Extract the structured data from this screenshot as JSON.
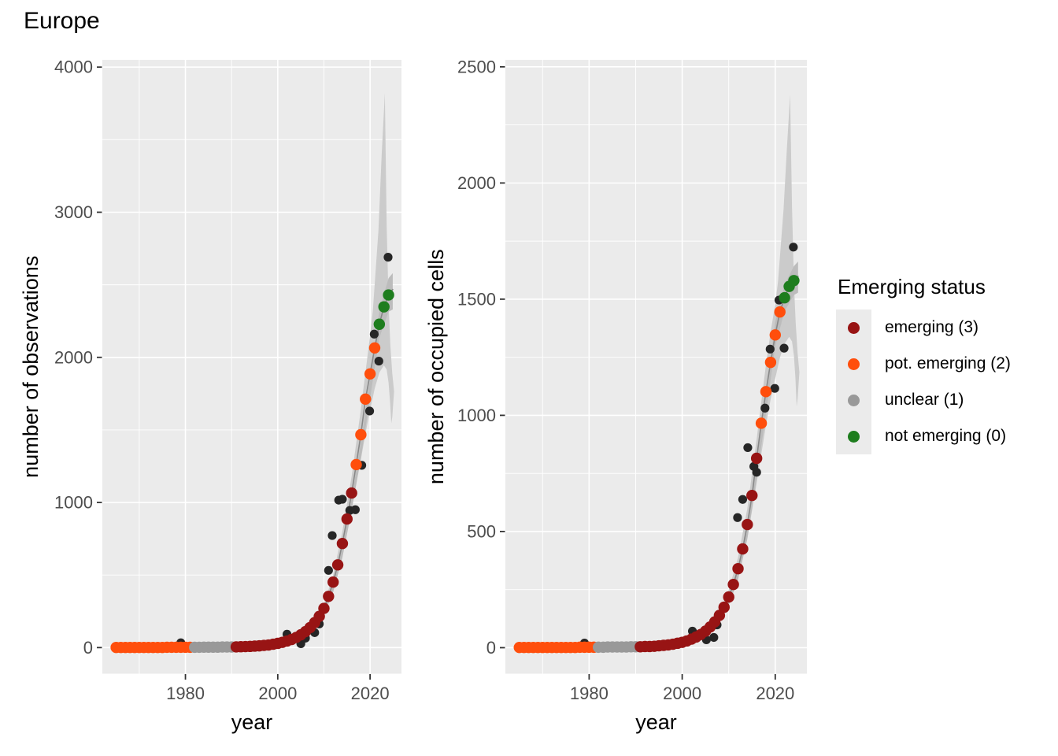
{
  "title": "Europe",
  "colors": {
    "panel_bg": "#EBEBEB",
    "grid": "#FFFFFF",
    "ribbon_outer": "#CBCBCB",
    "ribbon_inner": "#BCBCBC",
    "fit_line": "#888888",
    "observed_point": "#262626",
    "tick_mark": "#333333",
    "tick_label": "#4D4D4D",
    "axis_title": "#000000"
  },
  "status_colors": {
    "3": "#981414",
    "2": "#FF4E0C",
    "1": "#999999",
    "0": "#1E7D1E"
  },
  "legend": {
    "title": "Emerging status",
    "items": [
      {
        "code": 3,
        "label": "emerging (3)",
        "color": "#981414"
      },
      {
        "code": 2,
        "label": "pot. emerging (2)",
        "color": "#FF4E0C"
      },
      {
        "code": 1,
        "label": "unclear (1)",
        "color": "#999999"
      },
      {
        "code": 0,
        "label": "not emerging (0)",
        "color": "#1E7D1E"
      }
    ]
  },
  "x_axis": {
    "title": "year",
    "range": [
      1962,
      2026.8
    ],
    "ticks": [
      1980,
      2000,
      2020
    ],
    "minor": [
      1970,
      1990,
      2010
    ]
  },
  "chart_data": [
    {
      "type": "scatter",
      "panel": "observations",
      "y_title": "number of observations",
      "y_range": [
        -180,
        4050
      ],
      "y_ticks": [
        0,
        1000,
        2000,
        3000,
        4000
      ],
      "y_minor": [
        500,
        1500,
        2500,
        3500
      ],
      "fitted": [
        [
          1965,
          1,
          2
        ],
        [
          1966,
          1,
          2
        ],
        [
          1967,
          1,
          2
        ],
        [
          1968,
          1,
          2
        ],
        [
          1969,
          1,
          2
        ],
        [
          1970,
          1,
          2
        ],
        [
          1971,
          1,
          2
        ],
        [
          1972,
          1,
          2
        ],
        [
          1973,
          1,
          2
        ],
        [
          1974,
          1,
          2
        ],
        [
          1975,
          1,
          2
        ],
        [
          1976,
          2,
          2
        ],
        [
          1977,
          2,
          2
        ],
        [
          1978,
          2,
          2
        ],
        [
          1979,
          2,
          2
        ],
        [
          1980,
          2,
          2
        ],
        [
          1981,
          2,
          2
        ],
        [
          1982,
          2,
          1
        ],
        [
          1983,
          2,
          1
        ],
        [
          1984,
          3,
          1
        ],
        [
          1985,
          3,
          1
        ],
        [
          1986,
          3,
          1
        ],
        [
          1987,
          3,
          1
        ],
        [
          1988,
          4,
          1
        ],
        [
          1989,
          4,
          1
        ],
        [
          1990,
          4,
          1
        ],
        [
          1991,
          5,
          3
        ],
        [
          1992,
          6,
          3
        ],
        [
          1993,
          7,
          3
        ],
        [
          1994,
          8,
          3
        ],
        [
          1995,
          10,
          3
        ],
        [
          1996,
          12,
          3
        ],
        [
          1997,
          15,
          3
        ],
        [
          1998,
          18,
          3
        ],
        [
          1999,
          23,
          3
        ],
        [
          2000,
          29,
          3
        ],
        [
          2001,
          36,
          3
        ],
        [
          2002,
          45,
          3
        ],
        [
          2003,
          56,
          3
        ],
        [
          2004,
          70,
          3
        ],
        [
          2005,
          88,
          3
        ],
        [
          2006,
          110,
          3
        ],
        [
          2007,
          138,
          3
        ],
        [
          2008,
          172,
          3
        ],
        [
          2009,
          215,
          3
        ],
        [
          2010,
          270,
          3
        ],
        [
          2011,
          353,
          3
        ],
        [
          2012,
          451,
          3
        ],
        [
          2013,
          570,
          3
        ],
        [
          2014,
          717,
          3
        ],
        [
          2015,
          886,
          3
        ],
        [
          2016,
          1065,
          3
        ],
        [
          2017,
          1261,
          2
        ],
        [
          2018,
          1467,
          2
        ],
        [
          2019,
          1712,
          2
        ],
        [
          2020,
          1886,
          2
        ],
        [
          2021,
          2065,
          2
        ],
        [
          2022,
          2228,
          0
        ],
        [
          2023,
          2348,
          0
        ],
        [
          2024,
          2430,
          0
        ]
      ],
      "observed": [
        [
          1979,
          33
        ],
        [
          2002,
          92
        ],
        [
          2005,
          27
        ],
        [
          2006,
          65
        ],
        [
          2008,
          103
        ],
        [
          2009,
          163
        ],
        [
          2011,
          532
        ],
        [
          2011.8,
          772
        ],
        [
          2013.2,
          1016
        ],
        [
          2014,
          1022
        ],
        [
          2015.6,
          945
        ],
        [
          2016.8,
          950
        ],
        [
          2018.2,
          1256
        ],
        [
          2019.9,
          1630
        ],
        [
          2020.9,
          2160
        ],
        [
          2021.9,
          1974
        ],
        [
          2023.9,
          2690
        ]
      ],
      "ribbon_outer": {
        "upper": [
          [
            2004,
            85
          ],
          [
            2006,
            120
          ],
          [
            2008,
            195
          ],
          [
            2010,
            300
          ],
          [
            2012,
            500
          ],
          [
            2014,
            800
          ],
          [
            2016,
            1180
          ],
          [
            2018,
            1640
          ],
          [
            2019,
            1900
          ],
          [
            2020,
            2150
          ],
          [
            2020.6,
            2320
          ],
          [
            2021.8,
            2870
          ],
          [
            2022.5,
            3390
          ],
          [
            2023.2,
            3820
          ],
          [
            2023.6,
            2900
          ],
          [
            2024.05,
            2330
          ],
          [
            2024.4,
            2080
          ],
          [
            2024.8,
            1890
          ],
          [
            2025.2,
            1765
          ]
        ],
        "lower": [
          [
            2004,
            58
          ],
          [
            2006,
            90
          ],
          [
            2008,
            148
          ],
          [
            2010,
            238
          ],
          [
            2012,
            408
          ],
          [
            2014,
            648
          ],
          [
            2016,
            958
          ],
          [
            2018,
            1295
          ],
          [
            2019,
            1475
          ],
          [
            2020,
            1635
          ],
          [
            2021,
            1785
          ],
          [
            2022,
            1895
          ],
          [
            2023,
            1945
          ],
          [
            2023.6,
            1915
          ],
          [
            2024,
            1825
          ],
          [
            2024.35,
            1685
          ],
          [
            2024.6,
            1545
          ],
          [
            2024.8,
            1588
          ],
          [
            2025.2,
            1765
          ]
        ]
      },
      "ribbon_inner": {
        "upper": [
          [
            2005,
            92
          ],
          [
            2008,
            168
          ],
          [
            2010,
            262
          ],
          [
            2012,
            432
          ],
          [
            2014,
            685
          ],
          [
            2016,
            1030
          ],
          [
            2018,
            1415
          ],
          [
            2020,
            1855
          ],
          [
            2022,
            2320
          ],
          [
            2024,
            2545
          ],
          [
            2024.9,
            2580
          ]
        ],
        "lower": [
          [
            2005,
            74
          ],
          [
            2008,
            138
          ],
          [
            2010,
            228
          ],
          [
            2012,
            382
          ],
          [
            2014,
            618
          ],
          [
            2016,
            945
          ],
          [
            2018,
            1305
          ],
          [
            2020,
            1715
          ],
          [
            2022,
            2135
          ],
          [
            2024,
            2315
          ],
          [
            2024.9,
            2330
          ]
        ]
      },
      "line_extra": [
        [
          2024.6,
          2458
        ],
        [
          2025,
          2470
        ]
      ]
    },
    {
      "type": "scatter",
      "panel": "occupied-cells",
      "y_title": "number of occupied cells",
      "y_range": [
        -112,
        2530
      ],
      "y_ticks": [
        0,
        500,
        1000,
        1500,
        2000,
        2500
      ],
      "y_minor": [
        250,
        750,
        1250,
        1750,
        2250
      ],
      "fitted": [
        [
          1965,
          1,
          2
        ],
        [
          1966,
          1,
          2
        ],
        [
          1967,
          1,
          2
        ],
        [
          1968,
          1,
          2
        ],
        [
          1969,
          1,
          2
        ],
        [
          1970,
          1,
          2
        ],
        [
          1971,
          1,
          2
        ],
        [
          1972,
          1,
          2
        ],
        [
          1973,
          1,
          2
        ],
        [
          1974,
          1,
          2
        ],
        [
          1975,
          1,
          2
        ],
        [
          1976,
          1,
          2
        ],
        [
          1977,
          1,
          2
        ],
        [
          1978,
          2,
          2
        ],
        [
          1979,
          2,
          2
        ],
        [
          1980,
          2,
          2
        ],
        [
          1981,
          2,
          2
        ],
        [
          1982,
          2,
          1
        ],
        [
          1983,
          2,
          1
        ],
        [
          1984,
          3,
          1
        ],
        [
          1985,
          3,
          1
        ],
        [
          1986,
          3,
          1
        ],
        [
          1987,
          3,
          1
        ],
        [
          1988,
          3,
          1
        ],
        [
          1989,
          4,
          1
        ],
        [
          1990,
          4,
          1
        ],
        [
          1991,
          4,
          3
        ],
        [
          1992,
          5,
          3
        ],
        [
          1993,
          5,
          3
        ],
        [
          1994,
          6,
          3
        ],
        [
          1995,
          8,
          3
        ],
        [
          1996,
          10,
          3
        ],
        [
          1997,
          12,
          3
        ],
        [
          1998,
          15,
          3
        ],
        [
          1999,
          19,
          3
        ],
        [
          2000,
          23,
          3
        ],
        [
          2001,
          29,
          3
        ],
        [
          2002,
          37,
          3
        ],
        [
          2003,
          46,
          3
        ],
        [
          2004,
          57,
          3
        ],
        [
          2005,
          71,
          3
        ],
        [
          2006,
          89,
          3
        ],
        [
          2007,
          111,
          3
        ],
        [
          2008,
          139,
          3
        ],
        [
          2009,
          174,
          3
        ],
        [
          2010,
          218,
          3
        ],
        [
          2011,
          272,
          3
        ],
        [
          2012,
          340,
          3
        ],
        [
          2013,
          425,
          3
        ],
        [
          2014,
          530,
          3
        ],
        [
          2015,
          655,
          3
        ],
        [
          2016,
          815,
          3
        ],
        [
          2017,
          966,
          2
        ],
        [
          2018,
          1102,
          2
        ],
        [
          2019,
          1228,
          2
        ],
        [
          2020,
          1346,
          2
        ],
        [
          2021,
          1445,
          2
        ],
        [
          2022,
          1506,
          0
        ],
        [
          2023,
          1555,
          0
        ],
        [
          2024,
          1580,
          0
        ]
      ],
      "observed": [
        [
          1979,
          20
        ],
        [
          2002.2,
          71
        ],
        [
          2005.2,
          34
        ],
        [
          2006.8,
          44
        ],
        [
          2007.5,
          98
        ],
        [
          2011.9,
          560
        ],
        [
          2013,
          638
        ],
        [
          2014.1,
          861
        ],
        [
          2015.4,
          780
        ],
        [
          2016,
          755
        ],
        [
          2017.8,
          1031
        ],
        [
          2018.9,
          1285
        ],
        [
          2019.9,
          1116
        ],
        [
          2020.8,
          1496
        ],
        [
          2021.9,
          1289
        ],
        [
          2023.9,
          1724
        ]
      ],
      "ribbon_outer": {
        "upper": [
          [
            2004,
            68
          ],
          [
            2006,
            98
          ],
          [
            2008,
            158
          ],
          [
            2010,
            248
          ],
          [
            2012,
            388
          ],
          [
            2014,
            598
          ],
          [
            2016,
            898
          ],
          [
            2018,
            1218
          ],
          [
            2019,
            1358
          ],
          [
            2020,
            1478
          ],
          [
            2020.6,
            1578
          ],
          [
            2021.8,
            1888
          ],
          [
            2022.5,
            2148
          ],
          [
            2023.2,
            2380
          ],
          [
            2023.6,
            1898
          ],
          [
            2024.05,
            1558
          ],
          [
            2024.4,
            1398
          ],
          [
            2024.8,
            1268
          ],
          [
            2025.2,
            1185
          ]
        ],
        "lower": [
          [
            2004,
            46
          ],
          [
            2006,
            76
          ],
          [
            2008,
            118
          ],
          [
            2010,
            188
          ],
          [
            2012,
            298
          ],
          [
            2014,
            468
          ],
          [
            2016,
            708
          ],
          [
            2018,
            958
          ],
          [
            2019,
            1068
          ],
          [
            2020,
            1158
          ],
          [
            2021,
            1248
          ],
          [
            2022,
            1308
          ],
          [
            2023,
            1338
          ],
          [
            2023.6,
            1318
          ],
          [
            2024,
            1258
          ],
          [
            2024.35,
            1158
          ],
          [
            2024.6,
            1038
          ],
          [
            2024.8,
            1072
          ],
          [
            2025.2,
            1185
          ]
        ]
      },
      "ribbon_inner": {
        "upper": [
          [
            2005,
            76
          ],
          [
            2008,
            136
          ],
          [
            2010,
            212
          ],
          [
            2012,
            332
          ],
          [
            2014,
            522
          ],
          [
            2016,
            792
          ],
          [
            2018,
            1092
          ],
          [
            2020,
            1402
          ],
          [
            2022,
            1562
          ],
          [
            2024,
            1642
          ],
          [
            2024.9,
            1662
          ]
        ],
        "lower": [
          [
            2005,
            60
          ],
          [
            2008,
            113
          ],
          [
            2010,
            183
          ],
          [
            2012,
            292
          ],
          [
            2014,
            468
          ],
          [
            2016,
            728
          ],
          [
            2018,
            1008
          ],
          [
            2020,
            1298
          ],
          [
            2022,
            1448
          ],
          [
            2024,
            1518
          ],
          [
            2024.9,
            1528
          ]
        ]
      },
      "line_extra": [
        [
          2024.6,
          1592
        ],
        [
          2025,
          1600
        ]
      ]
    }
  ]
}
